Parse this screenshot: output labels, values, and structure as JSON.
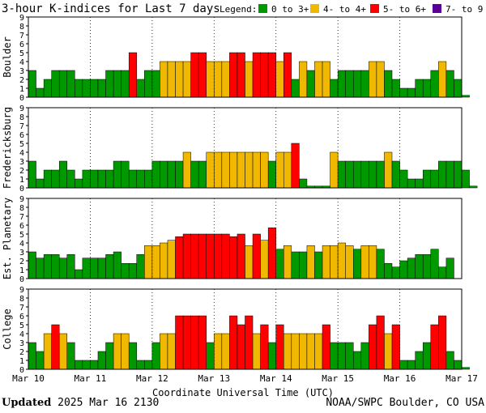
{
  "chart_data": {
    "type": "bar",
    "title": "3-hour K-indices for Last 7 days",
    "legend": {
      "label": "Legend:",
      "placement": "top-right",
      "items": [
        {
          "text": "0 to 3+",
          "color": "#009900"
        },
        {
          "text": "4- to 4+",
          "color": "#f0b800"
        },
        {
          "text": "5- to 6+",
          "color": "#ff0000"
        },
        {
          "text": "7- to 9",
          "color": "#5a0099"
        }
      ]
    },
    "xlabel": "Coordinate Universal Time (UTC)",
    "ylim": [
      0,
      9
    ],
    "yticks": [
      "0",
      "1",
      "2",
      "3",
      "4",
      "5",
      "6",
      "7",
      "8",
      "9"
    ],
    "day_labels": [
      "Mar 10",
      "Mar 11",
      "Mar 12",
      "Mar 13",
      "Mar 14",
      "Mar 15",
      "Mar 16",
      "Mar 17"
    ],
    "bins_per_day": 8,
    "panels": [
      {
        "name": "Boulder",
        "values": [
          3,
          1,
          2,
          3,
          3,
          3,
          2,
          2,
          2,
          2,
          3,
          3,
          3,
          5,
          2,
          3,
          3,
          4,
          4,
          4,
          4,
          5,
          5,
          4,
          4,
          4,
          5,
          5,
          4,
          5,
          5,
          5,
          4,
          5,
          2,
          4,
          3,
          4,
          4,
          2,
          3,
          3,
          3,
          3,
          4,
          4,
          3,
          2,
          1,
          1,
          2,
          2,
          3,
          4,
          3,
          2,
          0.2
        ]
      },
      {
        "name": "Fredericksburg",
        "values": [
          3,
          1,
          2,
          2,
          3,
          2,
          1,
          2,
          2,
          2,
          2,
          3,
          3,
          2,
          2,
          2,
          3,
          3,
          3,
          3,
          4,
          3,
          3,
          4,
          4,
          4,
          4,
          4,
          4,
          4,
          4,
          3,
          4,
          4,
          5,
          1,
          0.2,
          0.2,
          0.2,
          4,
          3,
          3,
          3,
          3,
          3,
          3,
          4,
          3,
          2,
          1,
          1,
          2,
          2,
          3,
          3,
          3,
          2,
          0.2
        ]
      },
      {
        "name": "Est. Planetary",
        "values": [
          3,
          2.3,
          2.7,
          2.7,
          2.3,
          2.7,
          1,
          2.3,
          2.3,
          2.3,
          2.7,
          3,
          1.7,
          1.7,
          2.7,
          3.7,
          3.7,
          4,
          4.3,
          4.7,
          5,
          5,
          5,
          5,
          5,
          5,
          4.7,
          5,
          3.7,
          5,
          4.3,
          5.7,
          3.3,
          3.7,
          3,
          3,
          3.7,
          3,
          3.7,
          3.7,
          4,
          3.7,
          3.3,
          3.7,
          3.7,
          3.3,
          1.7,
          1.3,
          2,
          2.3,
          2.7,
          2.7,
          3.3,
          1.3,
          2.3
        ]
      },
      {
        "name": "College",
        "values": [
          3,
          2,
          4,
          5,
          4,
          3,
          1,
          1,
          1,
          2,
          3,
          4,
          4,
          3,
          1,
          1,
          3,
          4,
          4,
          6,
          6,
          6,
          6,
          3,
          4,
          4,
          6,
          5,
          6,
          4,
          5,
          3,
          5,
          4,
          4,
          4,
          4,
          4,
          5,
          3,
          3,
          3,
          2,
          3,
          5,
          6,
          4,
          5,
          1,
          1,
          2,
          3,
          5,
          6,
          2,
          1,
          0.2
        ]
      }
    ]
  },
  "footer": {
    "updated_label": "Updated",
    "updated_value": "2025 Mar 16 2130",
    "source": "NOAA/SWPC Boulder, CO USA"
  }
}
